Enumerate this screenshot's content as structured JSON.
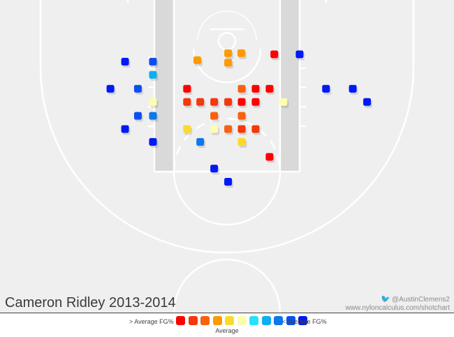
{
  "title": "Cameron Ridley 2013-2014",
  "credit": {
    "handle": "@AustinClemens2",
    "site": "www.nyloncalculus.com/shotchart"
  },
  "legend": {
    "high_label": "> Average FG%",
    "low_label": "< Average FG%",
    "avg_label": "Average",
    "colors": [
      "#ff0000",
      "#f4380c",
      "#f8620e",
      "#fd9a00",
      "#fbda2b",
      "#fdfdb0",
      "#25e3f6",
      "#0ab0f0",
      "#0b78ec",
      "#0a50f0",
      "#0019f5"
    ]
  },
  "colors": {
    "court_bg": "#efefef",
    "court_lines": "#ffffff",
    "lane": "#d9d9d9"
  },
  "chart_data": {
    "type": "scatter",
    "description_units": "court feet; x = lateral offset from basket (negative = left), y = feet from baseline",
    "color_scale": "FG% relative to league average (red above, blue below)",
    "shots": [
      {
        "x": -8.1,
        "y": 7.0,
        "color": "#fd9a00"
      },
      {
        "x": 0.3,
        "y": 8.9,
        "color": "#fd9a00"
      },
      {
        "x": 3.9,
        "y": 8.9,
        "color": "#fd9a00"
      },
      {
        "x": 0.3,
        "y": 6.3,
        "color": "#fd9a00"
      },
      {
        "x": 12.9,
        "y": 8.6,
        "color": "#ff0000"
      },
      {
        "x": 19.8,
        "y": 8.6,
        "color": "#0019f5"
      },
      {
        "x": -27.8,
        "y": 6.6,
        "color": "#0019f5"
      },
      {
        "x": -20.2,
        "y": 6.6,
        "color": "#0a50f0"
      },
      {
        "x": -20.2,
        "y": 3.0,
        "color": "#0ab0f0"
      },
      {
        "x": -31.8,
        "y": -0.8,
        "color": "#0019f5"
      },
      {
        "x": -24.3,
        "y": -0.8,
        "color": "#0a50f0"
      },
      {
        "x": -20.2,
        "y": -4.4,
        "color": "#fdfdb0"
      },
      {
        "x": -24.3,
        "y": -8.2,
        "color": "#0a50f0"
      },
      {
        "x": -20.2,
        "y": -8.2,
        "color": "#0b78ec"
      },
      {
        "x": -27.8,
        "y": -11.8,
        "color": "#0019f5"
      },
      {
        "x": -20.2,
        "y": -15.3,
        "color": "#0019f5"
      },
      {
        "x": -10.9,
        "y": -0.8,
        "color": "#ff0000"
      },
      {
        "x": -10.9,
        "y": -4.4,
        "color": "#f4380c"
      },
      {
        "x": -7.3,
        "y": -4.4,
        "color": "#f4380c"
      },
      {
        "x": -3.5,
        "y": -4.4,
        "color": "#f4380c"
      },
      {
        "x": 0.3,
        "y": -4.4,
        "color": "#f4380c"
      },
      {
        "x": 4.0,
        "y": -4.4,
        "color": "#ff0000"
      },
      {
        "x": 7.8,
        "y": -4.4,
        "color": "#ff0000"
      },
      {
        "x": 4.0,
        "y": -0.8,
        "color": "#f8620e"
      },
      {
        "x": 7.8,
        "y": -0.8,
        "color": "#ff0000"
      },
      {
        "x": 11.6,
        "y": -0.8,
        "color": "#ff0000"
      },
      {
        "x": -3.5,
        "y": -8.2,
        "color": "#f8620e"
      },
      {
        "x": 4.0,
        "y": -8.2,
        "color": "#f8620e"
      },
      {
        "x": -3.5,
        "y": -11.8,
        "color": "#fdfdb0"
      },
      {
        "x": 0.3,
        "y": -11.8,
        "color": "#f8620e"
      },
      {
        "x": 4.0,
        "y": -11.8,
        "color": "#f4380c"
      },
      {
        "x": 7.8,
        "y": -11.8,
        "color": "#f4380c"
      },
      {
        "x": -10.9,
        "y": -11.8,
        "color": "#fbda2b"
      },
      {
        "x": -7.3,
        "y": -15.3,
        "color": "#0b78ec"
      },
      {
        "x": 4.0,
        "y": -15.3,
        "color": "#fbda2b"
      },
      {
        "x": 11.6,
        "y": -19.4,
        "color": "#ff0000"
      },
      {
        "x": 15.4,
        "y": -4.4,
        "color": "#fdfdb0"
      },
      {
        "x": 27.0,
        "y": -0.8,
        "color": "#0019f5"
      },
      {
        "x": 34.3,
        "y": -0.8,
        "color": "#0019f5"
      },
      {
        "x": 38.2,
        "y": -4.4,
        "color": "#0019f5"
      },
      {
        "x": -3.5,
        "y": -22.6,
        "color": "#0019f5"
      },
      {
        "x": 0.3,
        "y": -26.2,
        "color": "#0019f5"
      }
    ]
  }
}
